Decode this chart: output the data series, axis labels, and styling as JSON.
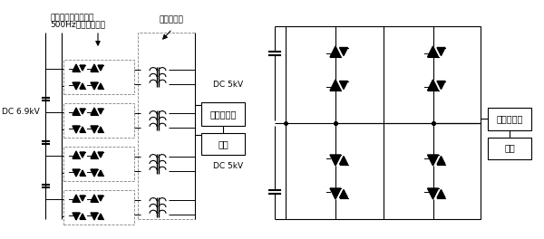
{
  "bg_color": "#ffffff",
  "label_inverter1": "スイッチング周波数",
  "label_inverter2": "500Hzインバーター",
  "label_transformer": "絶縁変圧器",
  "label_filter": "フィルター",
  "label_load": "負荷",
  "label_dc_left": "DC 6.9kV",
  "label_dc_right1": "DC 5kV",
  "label_dc_right2": "DC 5kV",
  "font_size_label": 6.5,
  "font_size_box": 7.0,
  "lw_main": 0.8,
  "lw_thick": 1.2,
  "lw_thin": 0.6
}
